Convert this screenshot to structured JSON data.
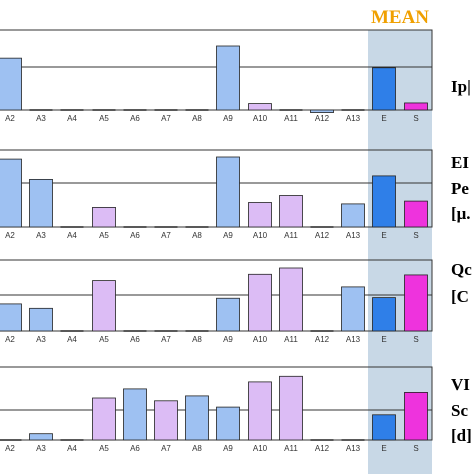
{
  "mean_label": "MEAN",
  "colors": {
    "mean_band": "#c8d8e6",
    "mean_text": "#f0a000",
    "blue_bar": "#9ec1f2",
    "violet_bar": "#dcbcf5",
    "mean_e": "#2f7fe8",
    "mean_s": "#ee33dd"
  },
  "chart_data": [
    {
      "type": "bar",
      "side_label": [
        "Ip|"
      ],
      "categories": [
        "A2",
        "A3",
        "A4",
        "A5",
        "A6",
        "A7",
        "A8",
        "A9",
        "A10",
        "A11",
        "A12",
        "A13",
        "E",
        "S"
      ],
      "series": [
        {
          "values": [
            0.81,
            0,
            0,
            0,
            0,
            0,
            0,
            1.0,
            0.1,
            0,
            -0.04,
            0,
            0.66,
            0.11
          ],
          "colors": [
            "blue",
            "blue",
            "blue",
            "violet",
            "blue",
            "violet",
            "blue",
            "blue",
            "violet",
            "violet",
            "blue",
            "blue",
            "mean_e",
            "mean_s"
          ]
        }
      ],
      "ylim": [
        -0.1,
        1.0
      ]
    },
    {
      "type": "bar",
      "side_label": [
        "EI",
        "Pe",
        "[μ."
      ],
      "categories": [
        "A2",
        "A3",
        "A4",
        "A5",
        "A6",
        "A7",
        "A8",
        "A9",
        "A10",
        "A11",
        "A12",
        "A13",
        "E",
        "S"
      ],
      "series": [
        {
          "values": [
            0.97,
            0.68,
            0,
            0.28,
            0,
            0,
            0,
            1.0,
            0.35,
            0.45,
            0,
            0.33,
            0.73,
            0.37
          ],
          "colors": [
            "blue",
            "blue",
            "blue",
            "violet",
            "blue",
            "violet",
            "blue",
            "blue",
            "violet",
            "violet",
            "blue",
            "blue",
            "mean_e",
            "mean_s"
          ]
        }
      ],
      "ylim": [
        0,
        1.0
      ]
    },
    {
      "type": "bar",
      "side_label": [
        "Qc",
        "[C"
      ],
      "categories": [
        "A2",
        "A3",
        "A4",
        "A5",
        "A6",
        "A7",
        "A8",
        "A9",
        "A10",
        "A11",
        "A12",
        "A13",
        "E",
        "S"
      ],
      "series": [
        {
          "values": [
            0.43,
            0.36,
            0,
            0.8,
            0,
            0,
            0,
            0.52,
            0.9,
            1.0,
            0,
            0.7,
            0.53,
            0.89
          ],
          "colors": [
            "blue",
            "blue",
            "blue",
            "violet",
            "blue",
            "violet",
            "blue",
            "blue",
            "violet",
            "violet",
            "blue",
            "blue",
            "mean_e",
            "mean_s"
          ]
        }
      ],
      "ylim": [
        0,
        1.0
      ]
    },
    {
      "type": "bar",
      "side_label": [
        "VI",
        "Sc",
        "[d]"
      ],
      "categories": [
        "A2",
        "A3",
        "A4",
        "A5",
        "A6",
        "A7",
        "A8",
        "A9",
        "A10",
        "A11",
        "A12",
        "A13",
        "E",
        "S"
      ],
      "series": [
        {
          "values": [
            0,
            0.09,
            0,
            0.6,
            0.73,
            0.56,
            0.63,
            0.47,
            0.83,
            0.91,
            0,
            0,
            0.36,
            0.68
          ],
          "colors": [
            "blue",
            "blue",
            "blue",
            "violet",
            "blue",
            "violet",
            "blue",
            "blue",
            "violet",
            "violet",
            "blue",
            "blue",
            "mean_e",
            "mean_s"
          ]
        }
      ],
      "ylim": [
        0,
        1.0
      ]
    }
  ]
}
